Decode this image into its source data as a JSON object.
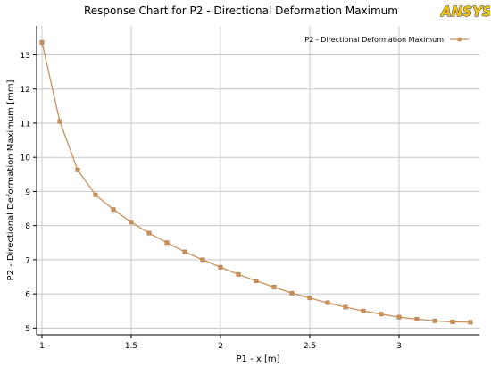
{
  "chart_data": {
    "type": "line",
    "title": "Response Chart for P2 - Directional Deformation Maximum",
    "xlabel": "P1 - x  [m]",
    "ylabel": "P2 - Directional Deformation Maximum  [mm]",
    "xlim": [
      0.97,
      3.45
    ],
    "ylim": [
      4.8,
      13.85
    ],
    "x_ticks": [
      1,
      1.5,
      2,
      2.5,
      3
    ],
    "x_tick_labels": [
      "1",
      "1.5",
      "2",
      "2.5",
      "3"
    ],
    "y_ticks": [
      5,
      6,
      7,
      8,
      9,
      10,
      11,
      12,
      13
    ],
    "y_tick_labels": [
      "5",
      "6",
      "7",
      "8",
      "9",
      "10",
      "11",
      "12",
      "13"
    ],
    "grid": true,
    "legend_position": "top-right",
    "series": [
      {
        "name": "P2 - Directional Deformation Maximum",
        "color": "#c8915c",
        "x": [
          1,
          1.1,
          1.2,
          1.3,
          1.4,
          1.5,
          1.6,
          1.7,
          1.8,
          1.9,
          2,
          2.1,
          2.2,
          2.3,
          2.4,
          2.5,
          2.6,
          2.7,
          2.8,
          2.9,
          3,
          3.1,
          3.2,
          3.3,
          3.4
        ],
        "y": [
          13.37,
          11.05,
          9.63,
          8.9,
          8.47,
          8.1,
          7.78,
          7.5,
          7.23,
          7.0,
          6.78,
          6.57,
          6.38,
          6.2,
          6.02,
          5.88,
          5.74,
          5.61,
          5.5,
          5.41,
          5.32,
          5.26,
          5.21,
          5.18,
          5.17
        ]
      }
    ]
  },
  "logo": {
    "text": "ANSYS",
    "colors": {
      "outline": "#555555",
      "fill": "#f2c511"
    }
  }
}
